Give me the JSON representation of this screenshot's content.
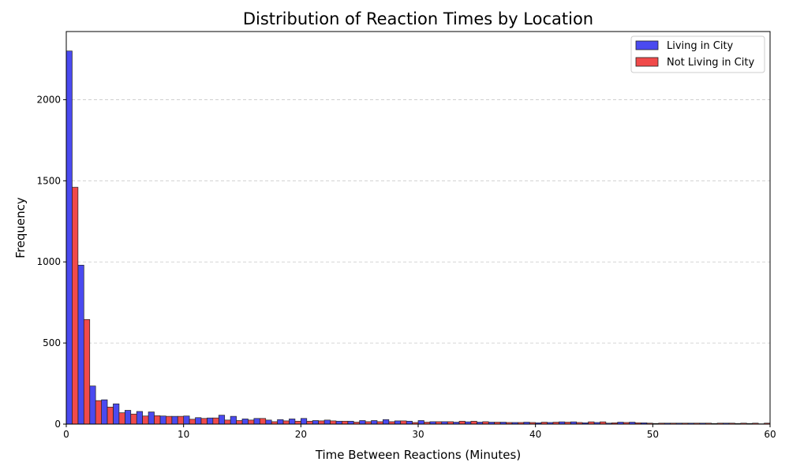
{
  "chart_data": {
    "type": "bar",
    "title": "Distribution of Reaction Times by Location",
    "xlabel": "Time Between Reactions (Minutes)",
    "ylabel": "Frequency",
    "xlim": [
      0,
      60
    ],
    "ylim": [
      0,
      2420
    ],
    "x_ticks": [
      "0",
      "10",
      "20",
      "30",
      "40",
      "50",
      "60"
    ],
    "y_ticks": [
      "0",
      "500",
      "1000",
      "1500",
      "2000"
    ],
    "grid": "y-dashed",
    "legend_position": "top-right",
    "bin_width": 1,
    "bins_start": [
      0,
      1,
      2,
      3,
      4,
      5,
      6,
      7,
      8,
      9,
      10,
      11,
      12,
      13,
      14,
      15,
      16,
      17,
      18,
      19,
      20,
      21,
      22,
      23,
      24,
      25,
      26,
      27,
      28,
      29,
      30,
      31,
      32,
      33,
      34,
      35,
      36,
      37,
      38,
      39,
      40,
      41,
      42,
      43,
      44,
      45,
      46,
      47,
      48,
      49,
      50,
      51,
      52,
      53,
      54,
      55,
      56,
      57,
      58,
      59
    ],
    "series": [
      {
        "name": "Living in City",
        "color": "#4a4af0",
        "values": [
          2300,
          980,
          235,
          150,
          125,
          85,
          78,
          75,
          50,
          48,
          50,
          40,
          38,
          55,
          48,
          32,
          35,
          25,
          28,
          32,
          35,
          22,
          25,
          18,
          18,
          22,
          22,
          28,
          20,
          18,
          22,
          15,
          15,
          12,
          14,
          12,
          12,
          12,
          10,
          12,
          8,
          10,
          14,
          14,
          8,
          10,
          6,
          12,
          12,
          8,
          4,
          6,
          6,
          6,
          6,
          4,
          6,
          4,
          4,
          2
        ]
      },
      {
        "name": "Not Living in City",
        "color": "#f04a4a",
        "values": [
          1460,
          645,
          145,
          105,
          70,
          62,
          50,
          52,
          48,
          48,
          30,
          35,
          38,
          25,
          22,
          25,
          35,
          15,
          20,
          18,
          18,
          20,
          20,
          18,
          12,
          15,
          15,
          15,
          20,
          10,
          12,
          15,
          15,
          18,
          18,
          15,
          12,
          10,
          10,
          10,
          12,
          12,
          12,
          10,
          14,
          14,
          8,
          10,
          8,
          6,
          6,
          6,
          6,
          6,
          6,
          6,
          6,
          6,
          6,
          6
        ]
      }
    ]
  }
}
